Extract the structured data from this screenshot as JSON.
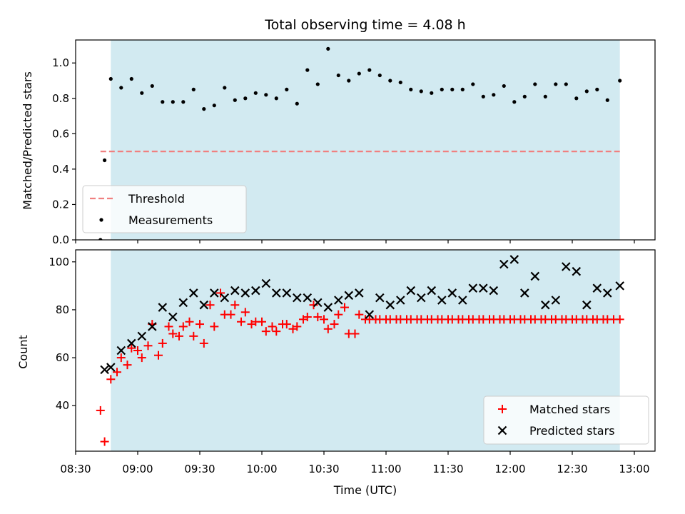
{
  "title": "Total observing time = 4.08 h",
  "colors": {
    "threshold": "#f08080",
    "measurements": "#000000",
    "matched": "#ff0000",
    "predicted": "#000000",
    "span": "#add8e6"
  },
  "chart_data": [
    {
      "type": "scatter",
      "ylabel": "Matched/Predicted stars",
      "ylim": [
        0,
        1.13
      ],
      "yticks": [
        0.0,
        0.2,
        0.4,
        0.6,
        0.8,
        1.0
      ],
      "ytick_labels": [
        "0.0",
        "0.2",
        "0.4",
        "0.6",
        "0.8",
        "1.0"
      ],
      "xlim_minutes": [
        510,
        790
      ],
      "shaded_span": {
        "start": "08:47",
        "end": "12:53"
      },
      "legend": {
        "position": "lower-left",
        "entries": [
          "Threshold",
          "Measurements"
        ]
      },
      "series": [
        {
          "name": "Threshold",
          "kind": "hline",
          "y": 0.5,
          "x_start": "08:42",
          "x_end": "12:53"
        },
        {
          "name": "Measurements",
          "kind": "points",
          "x": [
            "08:42",
            "08:44",
            "08:47",
            "08:52",
            "08:57",
            "09:02",
            "09:07",
            "09:12",
            "09:17",
            "09:22",
            "09:27",
            "09:32",
            "09:37",
            "09:42",
            "09:47",
            "09:52",
            "09:57",
            "10:02",
            "10:07",
            "10:12",
            "10:17",
            "10:22",
            "10:27",
            "10:32",
            "10:37",
            "10:42",
            "10:47",
            "10:52",
            "10:57",
            "11:02",
            "11:07",
            "11:12",
            "11:17",
            "11:22",
            "11:27",
            "11:32",
            "11:37",
            "11:42",
            "11:47",
            "11:52",
            "11:57",
            "12:02",
            "12:07",
            "12:12",
            "12:17",
            "12:22",
            "12:27",
            "12:32",
            "12:37",
            "12:42",
            "12:47",
            "12:53"
          ],
          "y": [
            0.0,
            0.45,
            0.91,
            0.86,
            0.91,
            0.83,
            0.87,
            0.78,
            0.78,
            0.78,
            0.85,
            0.74,
            0.76,
            0.86,
            0.79,
            0.8,
            0.83,
            0.82,
            0.8,
            0.85,
            0.77,
            0.96,
            0.88,
            1.08,
            0.93,
            0.9,
            0.94,
            0.96,
            0.93,
            0.9,
            0.89,
            0.85,
            0.84,
            0.83,
            0.85,
            0.85,
            0.85,
            0.88,
            0.81,
            0.82,
            0.87,
            0.78,
            0.81,
            0.88,
            0.81,
            0.88,
            0.88,
            0.8,
            0.84,
            0.85,
            0.79,
            0.9
          ]
        }
      ]
    },
    {
      "type": "scatter",
      "xlabel": "Time (UTC)",
      "ylabel": "Count",
      "ylim": [
        21,
        105
      ],
      "yticks": [
        40,
        60,
        80,
        100
      ],
      "ytick_labels": [
        "40",
        "60",
        "80",
        "100"
      ],
      "xlim_minutes": [
        510,
        790
      ],
      "xticks": [
        "08:30",
        "09:00",
        "09:30",
        "10:00",
        "10:30",
        "11:00",
        "11:30",
        "12:00",
        "12:30",
        "13:00"
      ],
      "shaded_span": {
        "start": "08:47",
        "end": "12:53"
      },
      "legend": {
        "position": "lower-right",
        "entries": [
          "Matched stars",
          "Predicted stars"
        ]
      },
      "series": [
        {
          "name": "Matched stars",
          "marker": "plus",
          "x": [
            "08:42",
            "08:44",
            "08:47",
            "08:50",
            "08:52",
            "08:55",
            "08:57",
            "09:00",
            "09:02",
            "09:05",
            "09:07",
            "09:10",
            "09:12",
            "09:15",
            "09:17",
            "09:20",
            "09:22",
            "09:25",
            "09:27",
            "09:30",
            "09:32",
            "09:35",
            "09:37",
            "09:40",
            "09:42",
            "09:45",
            "09:47",
            "09:50",
            "09:52",
            "09:55",
            "09:57",
            "10:00",
            "10:02",
            "10:05",
            "10:07",
            "10:10",
            "10:12",
            "10:15",
            "10:17",
            "10:20",
            "10:22",
            "10:25",
            "10:27",
            "10:30",
            "10:32",
            "10:35",
            "10:37",
            "10:40",
            "10:42",
            "10:45",
            "10:47",
            "10:50",
            "10:52",
            "10:55",
            "10:57",
            "11:00",
            "11:02",
            "11:05",
            "11:07",
            "11:10",
            "11:12",
            "11:15",
            "11:17",
            "11:20",
            "11:22",
            "11:25",
            "11:27",
            "11:30",
            "11:32",
            "11:35",
            "11:37",
            "11:40",
            "11:42",
            "11:45",
            "11:47",
            "11:50",
            "11:52",
            "11:55",
            "11:57",
            "12:00",
            "12:02",
            "12:05",
            "12:07",
            "12:10",
            "12:12",
            "12:15",
            "12:17",
            "12:20",
            "12:22",
            "12:25",
            "12:27",
            "12:30",
            "12:32",
            "12:35",
            "12:37",
            "12:40",
            "12:42",
            "12:45",
            "12:47",
            "12:50",
            "12:53"
          ],
          "y": [
            38,
            25,
            51,
            54,
            60,
            57,
            64,
            63,
            60,
            65,
            74,
            61,
            66,
            73,
            70,
            69,
            73,
            75,
            69,
            74,
            66,
            82,
            73,
            87,
            78,
            78,
            82,
            75,
            79,
            74,
            75,
            75,
            71,
            73,
            71,
            74,
            74,
            72,
            73,
            76,
            77,
            82,
            77,
            76,
            72,
            74,
            78,
            81,
            70,
            70,
            78,
            76,
            76,
            76,
            76,
            76,
            76,
            76,
            76,
            76,
            76,
            76,
            76,
            76,
            76,
            76,
            76,
            76,
            76,
            76,
            76,
            76,
            76,
            76,
            76,
            76,
            76,
            76,
            76,
            76,
            76,
            76,
            76,
            76,
            76,
            76,
            76,
            76,
            76,
            76,
            76,
            76,
            76,
            76,
            76,
            76,
            76,
            76,
            76,
            76,
            76
          ]
        },
        {
          "name": "Predicted stars",
          "marker": "x",
          "x": [
            "08:44",
            "08:47",
            "08:52",
            "08:57",
            "09:02",
            "09:07",
            "09:12",
            "09:17",
            "09:22",
            "09:27",
            "09:32",
            "09:37",
            "09:42",
            "09:47",
            "09:52",
            "09:57",
            "10:02",
            "10:07",
            "10:12",
            "10:17",
            "10:22",
            "10:27",
            "10:32",
            "10:37",
            "10:42",
            "10:47",
            "10:52",
            "10:57",
            "11:02",
            "11:07",
            "11:12",
            "11:17",
            "11:22",
            "11:27",
            "11:32",
            "11:37",
            "11:42",
            "11:47",
            "11:52",
            "11:57",
            "12:02",
            "12:07",
            "12:12",
            "12:17",
            "12:22",
            "12:27",
            "12:32",
            "12:37",
            "12:42",
            "12:47",
            "12:53"
          ],
          "y": [
            55,
            56,
            63,
            66,
            69,
            73,
            81,
            77,
            83,
            87,
            82,
            87,
            85,
            88,
            87,
            88,
            91,
            87,
            87,
            85,
            85,
            83,
            81,
            84,
            86,
            87,
            78,
            85,
            82,
            84,
            88,
            85,
            88,
            84,
            87,
            84,
            89,
            89,
            88,
            99,
            101,
            87,
            94,
            82,
            84,
            98,
            96,
            82,
            89,
            87,
            90
          ]
        }
      ]
    }
  ]
}
